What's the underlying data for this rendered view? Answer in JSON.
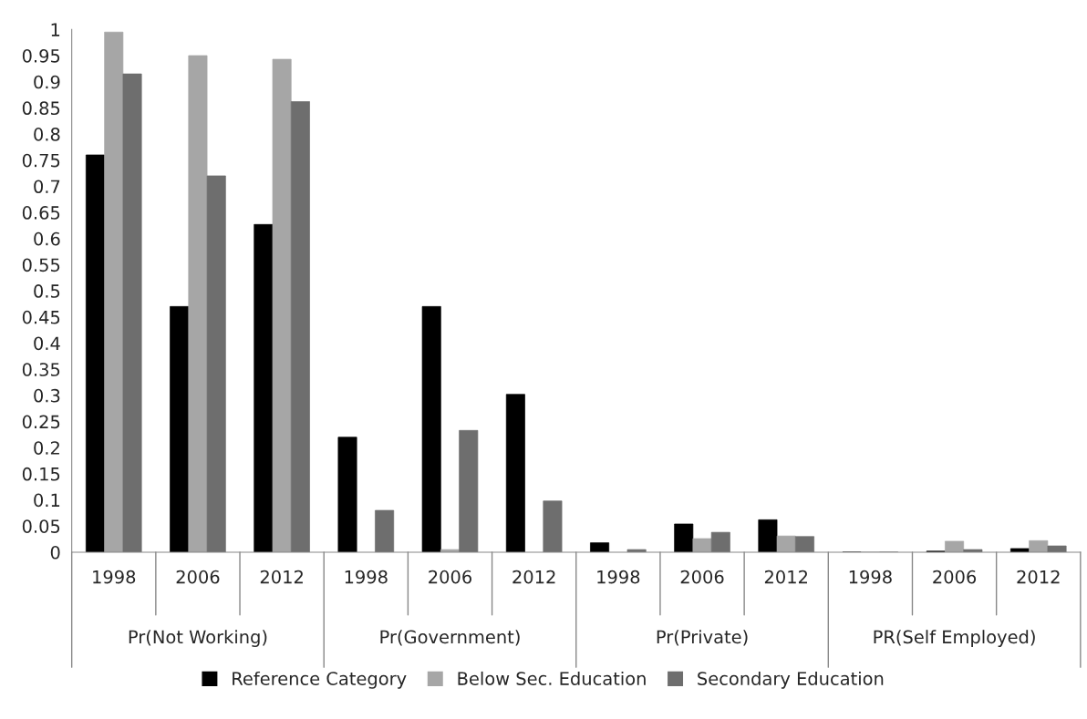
{
  "chart_data": {
    "type": "bar",
    "categories": [
      "1998",
      "2006",
      "2012",
      "1998",
      "2006",
      "2012",
      "1998",
      "2006",
      "2012",
      "1998",
      "2006",
      "2012"
    ],
    "series": [
      {
        "name": "Reference Category",
        "color": "#000000",
        "values": [
          0.76,
          0.47,
          0.627,
          0.22,
          0.47,
          0.302,
          0.018,
          0.054,
          0.062,
          0,
          0.002,
          0.007
        ]
      },
      {
        "name": "Below Sec. Education",
        "color": "#a6a6a6",
        "values": [
          0.995,
          0.95,
          0.943,
          null,
          0.005,
          null,
          null,
          0.026,
          0.031,
          0,
          0.021,
          0.022
        ]
      },
      {
        "name": "Secondary Education",
        "color": "#6e6e6e",
        "values": [
          0.915,
          0.72,
          0.862,
          0.08,
          0.233,
          0.098,
          0.005,
          0.038,
          0.03,
          0,
          0.005,
          0.012
        ]
      }
    ],
    "annotations": [
      "Pr(Not Working)",
      "Pr(Government)",
      "Pr(Private)",
      "PR(Self Employed)"
    ],
    "ylim": [
      0,
      1
    ],
    "yticks": [
      0,
      {
        "value": 0.05,
        "label": "0.05"
      },
      {
        "value": 0.1,
        "label": "0.1"
      },
      {
        "value": 0.15,
        "label": "0.15"
      },
      {
        "value": 0.2,
        "label": "0.2"
      },
      {
        "value": 0.25,
        "label": "0.25"
      },
      {
        "value": 0.3,
        "label": "0.3"
      },
      {
        "value": 0.35,
        "label": "0.35"
      },
      {
        "value": 0.4,
        "label": "0.4"
      },
      {
        "value": 0.45,
        "label": "0.45"
      },
      {
        "value": 0.5,
        "label": "0.5"
      },
      {
        "value": 0.55,
        "label": "0.55"
      },
      {
        "value": 0.6,
        "label": "0.6"
      },
      {
        "value": 0.65,
        "label": "0.65"
      },
      {
        "value": 0.7,
        "label": "0.7"
      },
      {
        "value": 0.75,
        "label": "0.75"
      },
      {
        "value": 0.8,
        "label": "0.8"
      },
      {
        "value": 0.85,
        "label": "0.85"
      },
      {
        "value": 0.9,
        "label": "0.9"
      },
      {
        "value": 0.95,
        "label": "0.95"
      },
      1
    ],
    "grid": false,
    "legend": "bottom"
  }
}
